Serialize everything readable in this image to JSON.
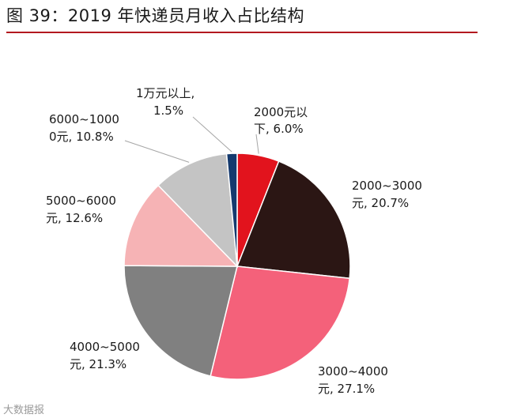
{
  "header": {
    "title": "图 39：2019 年快递员月收入占比结构"
  },
  "watermark": {
    "text": "大数据报"
  },
  "colors": {
    "rule": "#b3191f"
  },
  "chart_data": {
    "type": "pie",
    "title": "2019 年快递员月收入占比结构",
    "start_angle_deg": 0,
    "direction": "clockwise",
    "slices": [
      {
        "key": "s2000",
        "label_line1": "2000元以",
        "label_line2": "下, 6.0%",
        "value": 6.0,
        "color": "#e2131d"
      },
      {
        "key": "s2000_3000",
        "label_line1": "2000~3000",
        "label_line2": "元, 20.7%",
        "value": 20.7,
        "color": "#2b1614"
      },
      {
        "key": "s3000_4000",
        "label_line1": "3000~4000",
        "label_line2": "元, 27.1%",
        "value": 27.1,
        "color": "#f4617a"
      },
      {
        "key": "s4000_5000",
        "label_line1": "4000~5000",
        "label_line2": "元, 21.3%",
        "value": 21.3,
        "color": "#808080"
      },
      {
        "key": "s5000_6000",
        "label_line1": "5000~6000",
        "label_line2": "元, 12.6%",
        "value": 12.6,
        "color": "#f6b3b5"
      },
      {
        "key": "s6000_10000",
        "label_line1": "6000~1000",
        "label_line2": "0元, 10.8%",
        "value": 10.8,
        "color": "#c4c4c4"
      },
      {
        "key": "s10000plus",
        "label_line1": "1万元以上,",
        "label_line2": "1.5%",
        "value": 1.5,
        "color": "#153a6e"
      }
    ]
  }
}
